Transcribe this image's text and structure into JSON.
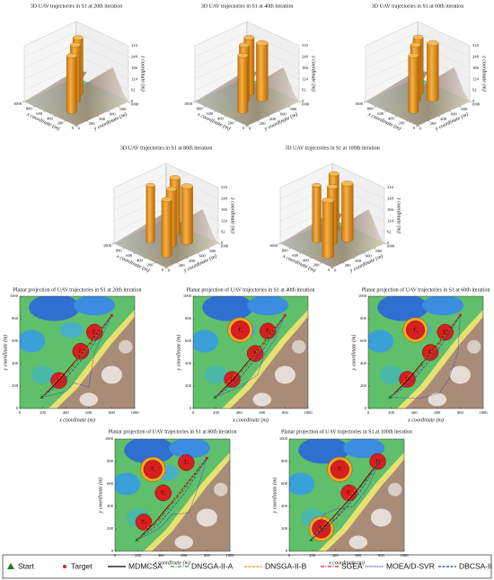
{
  "legend": {
    "markers": [
      {
        "label": "Start",
        "color": "#1b7a2e"
      },
      {
        "label": "Target",
        "color": "#d62020"
      }
    ],
    "series": [
      {
        "name": "MDMCSA",
        "color": "#000000",
        "dash": "solid"
      },
      {
        "name": "DNSGA-II-A",
        "color": "#2e9a2e",
        "dash": "dashdot"
      },
      {
        "name": "DNSGA-II-B",
        "color": "#f08c00",
        "dash": "dash"
      },
      {
        "name": "SGEA",
        "color": "#d62020",
        "dash": "dashdot"
      },
      {
        "name": "MOEA/D-SVR",
        "color": "#2020c0",
        "dash": "dot"
      },
      {
        "name": "DBCSA-II",
        "color": "#1a3fb0",
        "dash": "dash"
      }
    ]
  },
  "chart_data": [
    {
      "type": "3d-trajectory",
      "title": "3D UAV trajectories in S1 at 20th iteration",
      "xlabel": "x coordinate (m)",
      "ylabel": "y coordinate (m)",
      "zlabel": "z coordinate (m)",
      "xlim": [
        0,
        1000
      ],
      "ylim": [
        0,
        1000
      ],
      "zlim": [
        0,
        310
      ],
      "xticks": [
        0,
        200,
        400,
        600,
        800,
        1000
      ],
      "yticks": [
        0,
        200,
        400,
        600,
        800,
        1000
      ],
      "zticks": [
        0,
        62,
        124,
        186,
        248,
        310
      ],
      "threats": [
        {
          "x": 340,
          "y": 250,
          "r": 70
        },
        {
          "x": 530,
          "y": 510,
          "r": 70
        },
        {
          "x": 650,
          "y": 680,
          "r": 70
        }
      ]
    },
    {
      "type": "3d-trajectory",
      "title": "3D UAV trajectories in S1 at 40th iteration",
      "xlabel": "x coordinate (m)",
      "ylabel": "y coordinate (m)",
      "zlabel": "z coordinate (m)",
      "xlim": [
        0,
        1000
      ],
      "ylim": [
        0,
        1000
      ],
      "zlim": [
        0,
        310
      ],
      "xticks": [
        0,
        200,
        400,
        600,
        800,
        1000
      ],
      "yticks": [
        0,
        200,
        400,
        600,
        800,
        1000
      ],
      "zticks": [
        0,
        62,
        124,
        186,
        248,
        310
      ],
      "threats": [
        {
          "x": 340,
          "y": 260,
          "r": 70
        },
        {
          "x": 540,
          "y": 490,
          "r": 70
        },
        {
          "x": 650,
          "y": 690,
          "r": 70
        },
        {
          "x": 410,
          "y": 700,
          "r": 80
        }
      ]
    },
    {
      "type": "3d-trajectory",
      "title": "3D UAV trajectories in S1 at 60th iteration",
      "xlabel": "x coordinate (m)",
      "ylabel": "y coordinate (m)",
      "zlabel": "z coordinate (m)",
      "xlim": [
        0,
        1000
      ],
      "ylim": [
        0,
        1000
      ],
      "zlim": [
        0,
        310
      ],
      "xticks": [
        0,
        200,
        400,
        600,
        800,
        1000
      ],
      "yticks": [
        0,
        200,
        400,
        600,
        800,
        1000
      ],
      "zticks": [
        0,
        62,
        124,
        186,
        248,
        310
      ],
      "threats": [
        {
          "x": 340,
          "y": 260,
          "r": 70
        },
        {
          "x": 540,
          "y": 500,
          "r": 70
        },
        {
          "x": 670,
          "y": 680,
          "r": 70
        },
        {
          "x": 410,
          "y": 700,
          "r": 80
        }
      ]
    },
    {
      "type": "3d-trajectory",
      "title": "3D UAV trajectories in S1 at 80th iteration",
      "xlabel": "x coordinate (m)",
      "ylabel": "y coordinate (m)",
      "zlabel": "z coordinate (m)",
      "xlim": [
        0,
        1000
      ],
      "ylim": [
        0,
        1000
      ],
      "zlim": [
        0,
        310
      ],
      "xticks": [
        0,
        200,
        400,
        600,
        800,
        1000
      ],
      "yticks": [
        0,
        200,
        400,
        600,
        800,
        1000
      ],
      "zticks": [
        0,
        62,
        124,
        186,
        248,
        310
      ],
      "threats": [
        {
          "x": 250,
          "y": 260,
          "r": 70
        },
        {
          "x": 420,
          "y": 520,
          "r": 70
        },
        {
          "x": 620,
          "y": 790,
          "r": 70
        },
        {
          "x": 330,
          "y": 730,
          "r": 80
        },
        {
          "x": 700,
          "y": 400,
          "r": 60
        }
      ]
    },
    {
      "type": "3d-trajectory",
      "title": "3D UAV trajectories in S1 at 100th iteration",
      "xlabel": "x coordinate (m)",
      "ylabel": "y coordinate (m)",
      "zlabel": "z coordinate (m)",
      "xlim": [
        0,
        1000
      ],
      "ylim": [
        0,
        1000
      ],
      "zlim": [
        0,
        310
      ],
      "xticks": [
        0,
        200,
        400,
        600,
        800,
        1000
      ],
      "yticks": [
        0,
        200,
        400,
        600,
        800,
        1000
      ],
      "zticks": [
        0,
        62,
        124,
        186,
        248,
        310
      ],
      "threats": [
        {
          "x": 280,
          "y": 200,
          "r": 80
        },
        {
          "x": 520,
          "y": 520,
          "r": 70
        },
        {
          "x": 770,
          "y": 800,
          "r": 70
        },
        {
          "x": 440,
          "y": 730,
          "r": 80
        },
        {
          "x": 700,
          "y": 400,
          "r": 60
        }
      ]
    },
    {
      "type": "planar-trajectory",
      "title": "Planar projection of UAV trajectories in S1 at 20th iteration",
      "xlabel": "x coordinate (m)",
      "ylabel": "y coordinate (m)",
      "xlim": [
        0,
        1000
      ],
      "ylim": [
        0,
        1000
      ],
      "xticks": [
        0,
        200,
        400,
        600,
        800,
        1000
      ],
      "yticks": [
        0,
        200,
        400,
        600,
        800,
        1000
      ],
      "start": {
        "x": 190,
        "y": 100
      },
      "target": {
        "x": 800,
        "y": 830
      },
      "threats": [
        {
          "label": "T₁",
          "x": 340,
          "y": 250,
          "r": 70,
          "ring": false
        },
        {
          "label": "T₂",
          "x": 530,
          "y": 510,
          "r": 70,
          "ring": false
        },
        {
          "label": "T₃",
          "x": 650,
          "y": 680,
          "r": 70,
          "ring": false
        }
      ],
      "series": [
        {
          "x": [
            190,
            350,
            560,
            800
          ],
          "y": [
            100,
            260,
            520,
            830
          ]
        },
        {
          "x": [
            190,
            360,
            580,
            800
          ],
          "y": [
            100,
            250,
            520,
            830
          ]
        },
        {
          "x": [
            190,
            340,
            570,
            800
          ],
          "y": [
            100,
            270,
            530,
            830
          ]
        },
        {
          "x": [
            190,
            370,
            590,
            800
          ],
          "y": [
            100,
            260,
            540,
            830
          ]
        },
        {
          "x": [
            190,
            400,
            470,
            600,
            650,
            800
          ],
          "y": [
            100,
            150,
            230,
            190,
            500,
            830
          ]
        },
        {
          "x": [
            190,
            380,
            600,
            800
          ],
          "y": [
            100,
            240,
            510,
            830
          ]
        }
      ]
    },
    {
      "type": "planar-trajectory",
      "title": "Planar projection of UAV trajectories in S1 at 40th iteration",
      "xlabel": "x coordinate (m)",
      "ylabel": "y coordinate (m)",
      "xlim": [
        0,
        1000
      ],
      "ylim": [
        0,
        1000
      ],
      "xticks": [
        0,
        200,
        400,
        600,
        800,
        1000
      ],
      "yticks": [
        0,
        200,
        400,
        600,
        800,
        1000
      ],
      "start": {
        "x": 190,
        "y": 100
      },
      "target": {
        "x": 800,
        "y": 830
      },
      "threats": [
        {
          "label": "T₁",
          "x": 340,
          "y": 260,
          "r": 70,
          "ring": false
        },
        {
          "label": "T₂",
          "x": 540,
          "y": 490,
          "r": 70,
          "ring": false
        },
        {
          "label": "T₃",
          "x": 650,
          "y": 690,
          "r": 70,
          "ring": false
        },
        {
          "label": "T₄",
          "x": 410,
          "y": 700,
          "r": 80,
          "ring": true
        }
      ],
      "series": [
        {
          "x": [
            190,
            350,
            560,
            800
          ],
          "y": [
            100,
            260,
            520,
            830
          ]
        },
        {
          "x": [
            190,
            360,
            580,
            800
          ],
          "y": [
            100,
            250,
            520,
            830
          ]
        },
        {
          "x": [
            190,
            340,
            570,
            800
          ],
          "y": [
            100,
            270,
            530,
            830
          ]
        },
        {
          "x": [
            190,
            370,
            590,
            800
          ],
          "y": [
            100,
            260,
            540,
            830
          ]
        },
        {
          "x": [
            190,
            420,
            560,
            620,
            700,
            800
          ],
          "y": [
            100,
            200,
            300,
            480,
            600,
            830
          ]
        },
        {
          "x": [
            190,
            380,
            600,
            800
          ],
          "y": [
            100,
            240,
            510,
            830
          ]
        }
      ]
    },
    {
      "type": "planar-trajectory",
      "title": "Planar projection of UAV trajectories in S1 at 60th iteration",
      "xlabel": "x coordinate (m)",
      "ylabel": "y coordinate (m)",
      "xlim": [
        0,
        1000
      ],
      "ylim": [
        0,
        1000
      ],
      "xticks": [
        0,
        200,
        400,
        600,
        800,
        1000
      ],
      "yticks": [
        0,
        200,
        400,
        600,
        800,
        1000
      ],
      "start": {
        "x": 190,
        "y": 100
      },
      "target": {
        "x": 800,
        "y": 830
      },
      "threats": [
        {
          "label": "T₁",
          "x": 340,
          "y": 260,
          "r": 70,
          "ring": false
        },
        {
          "label": "T₂",
          "x": 540,
          "y": 500,
          "r": 70,
          "ring": false
        },
        {
          "label": "T₃",
          "x": 670,
          "y": 680,
          "r": 70,
          "ring": false
        },
        {
          "label": "T₄",
          "x": 410,
          "y": 700,
          "r": 80,
          "ring": true
        }
      ],
      "series": [
        {
          "x": [
            190,
            350,
            560,
            800
          ],
          "y": [
            100,
            260,
            520,
            830
          ]
        },
        {
          "x": [
            190,
            360,
            580,
            800
          ],
          "y": [
            100,
            250,
            520,
            830
          ]
        },
        {
          "x": [
            190,
            340,
            570,
            800
          ],
          "y": [
            100,
            270,
            530,
            830
          ]
        },
        {
          "x": [
            190,
            370,
            590,
            800
          ],
          "y": [
            100,
            260,
            540,
            830
          ]
        },
        {
          "x": [
            190,
            450,
            620,
            700,
            780,
            800
          ],
          "y": [
            100,
            90,
            140,
            260,
            500,
            830
          ]
        },
        {
          "x": [
            190,
            380,
            600,
            800
          ],
          "y": [
            100,
            240,
            510,
            830
          ]
        }
      ]
    },
    {
      "type": "planar-trajectory",
      "title": "Planar projection of UAV trajectories in S1 at 80th iteration",
      "xlabel": "x coordinate (m)",
      "ylabel": "y coordinate (m)",
      "xlim": [
        0,
        1000
      ],
      "ylim": [
        0,
        1000
      ],
      "xticks": [
        0,
        200,
        400,
        600,
        800,
        1000
      ],
      "yticks": [
        0,
        200,
        400,
        600,
        800,
        1000
      ],
      "start": {
        "x": 190,
        "y": 100
      },
      "target": {
        "x": 800,
        "y": 830
      },
      "threats": [
        {
          "label": "T₁",
          "x": 250,
          "y": 260,
          "r": 70,
          "ring": false
        },
        {
          "label": "T₂",
          "x": 420,
          "y": 520,
          "r": 70,
          "ring": false
        },
        {
          "label": "T₄",
          "x": 620,
          "y": 790,
          "r": 70,
          "ring": false
        },
        {
          "label": "T₅",
          "x": 330,
          "y": 730,
          "r": 80,
          "ring": true
        }
      ],
      "series": [
        {
          "x": [
            190,
            350,
            560,
            800
          ],
          "y": [
            100,
            260,
            520,
            830
          ]
        },
        {
          "x": [
            190,
            360,
            580,
            800
          ],
          "y": [
            100,
            250,
            520,
            830
          ]
        },
        {
          "x": [
            190,
            340,
            570,
            800
          ],
          "y": [
            100,
            270,
            530,
            830
          ]
        },
        {
          "x": [
            190,
            370,
            590,
            800
          ],
          "y": [
            100,
            260,
            540,
            830
          ]
        },
        {
          "x": [
            190,
            380,
            500,
            640,
            720,
            800
          ],
          "y": [
            100,
            200,
            330,
            340,
            560,
            830
          ]
        },
        {
          "x": [
            190,
            380,
            600,
            800
          ],
          "y": [
            100,
            240,
            510,
            830
          ]
        }
      ]
    },
    {
      "type": "planar-trajectory",
      "title": "Planar projection of UAV trajectories in S1 at 100th iteration",
      "xlabel": "x coordinate (m)",
      "ylabel": "y coordinate (m)",
      "xlim": [
        0,
        1000
      ],
      "ylim": [
        0,
        1000
      ],
      "xticks": [
        0,
        200,
        400,
        600,
        800,
        1000
      ],
      "yticks": [
        0,
        200,
        400,
        600,
        800,
        1000
      ],
      "start": {
        "x": 190,
        "y": 100
      },
      "target": {
        "x": 800,
        "y": 830
      },
      "threats": [
        {
          "label": "T₁",
          "x": 280,
          "y": 200,
          "r": 80,
          "ring": true
        },
        {
          "label": "T₂",
          "x": 520,
          "y": 520,
          "r": 70,
          "ring": false
        },
        {
          "label": "T₄",
          "x": 770,
          "y": 800,
          "r": 70,
          "ring": false
        },
        {
          "label": "T₅",
          "x": 440,
          "y": 730,
          "r": 80,
          "ring": true
        }
      ],
      "series": [
        {
          "x": [
            190,
            380,
            580,
            800
          ],
          "y": [
            100,
            300,
            530,
            830
          ]
        },
        {
          "x": [
            190,
            390,
            590,
            800
          ],
          "y": [
            100,
            290,
            520,
            830
          ]
        },
        {
          "x": [
            190,
            370,
            570,
            800
          ],
          "y": [
            100,
            310,
            540,
            830
          ]
        },
        {
          "x": [
            190,
            400,
            600,
            800
          ],
          "y": [
            100,
            290,
            540,
            830
          ]
        },
        {
          "x": [
            190,
            300,
            420,
            560,
            680,
            800
          ],
          "y": [
            100,
            330,
            380,
            400,
            560,
            830
          ]
        },
        {
          "x": [
            190,
            400,
            610,
            800
          ],
          "y": [
            100,
            280,
            520,
            830
          ]
        }
      ]
    }
  ]
}
